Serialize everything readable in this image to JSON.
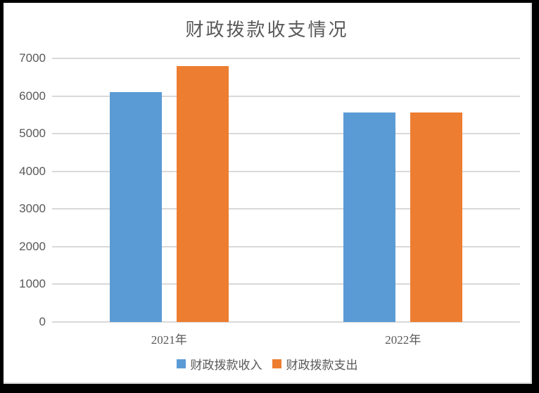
{
  "chart_data": {
    "type": "bar",
    "title": "财政拨款收支情况",
    "categories": [
      "2021年",
      "2022年"
    ],
    "series": [
      {
        "name": "财政拨款收入",
        "color": "#5B9BD5",
        "values": [
          6100,
          5560
        ]
      },
      {
        "name": "财政拨款支出",
        "color": "#ED7D31",
        "values": [
          6800,
          5560
        ]
      }
    ],
    "ylim": [
      0,
      7000
    ],
    "ytick_step": 1000,
    "grid": true,
    "legend_position": "bottom"
  },
  "colors": {
    "text": "#595959",
    "gridline": "#D9D9D9",
    "plot_background": "#FFFFFF",
    "frame_border": "#000000"
  }
}
